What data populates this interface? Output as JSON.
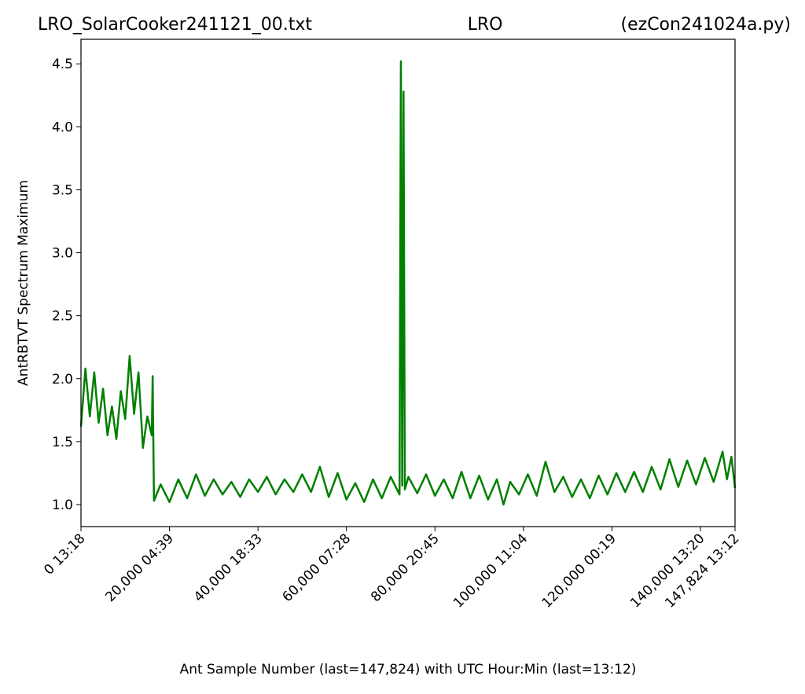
{
  "chart_data": {
    "type": "line",
    "titles": [
      "LRO_SolarCooker241121_00.txt",
      "LRO",
      "(ezCon241024a.py)"
    ],
    "x_label": "Ant Sample Number (last=147,824) with UTC Hour:Min (last=13:12)",
    "y_label": "AntRBTVT Spectrum Maximum",
    "xlim": [
      0,
      147824
    ],
    "ylim": [
      0.825,
      4.695
    ],
    "xticks": [
      {
        "value": 0,
        "label": "0  13:18"
      },
      {
        "value": 20000,
        "label": "20,000  04:39"
      },
      {
        "value": 40000,
        "label": "40,000  18:33"
      },
      {
        "value": 60000,
        "label": "60,000  07:28"
      },
      {
        "value": 80000,
        "label": "80,000  20:45"
      },
      {
        "value": 100000,
        "label": "100,000  11:04"
      },
      {
        "value": 120000,
        "label": "120,000  00:19"
      },
      {
        "value": 140000,
        "label": "140,000  13:20"
      },
      {
        "value": 147824,
        "label": "147,824  13:12"
      }
    ],
    "yticks": [
      {
        "value": 1,
        "label": "1.0"
      },
      1.5,
      {
        "value": 2,
        "label": "2.0"
      },
      2.5,
      {
        "value": 3,
        "label": "3.0"
      },
      3.5,
      {
        "value": 4,
        "label": "4.0"
      },
      4.5
    ],
    "x": [
      0,
      1000,
      2000,
      3000,
      4000,
      5000,
      6000,
      7000,
      8000,
      9000,
      10000,
      11000,
      12000,
      13000,
      14000,
      15000,
      16000,
      16200,
      16500,
      18000,
      20000,
      22000,
      24000,
      26000,
      28000,
      30000,
      32000,
      34000,
      36000,
      38000,
      40000,
      42000,
      44000,
      46000,
      48000,
      50000,
      52000,
      54000,
      56000,
      58000,
      60000,
      62000,
      64000,
      66000,
      68000,
      70000,
      72000,
      72300,
      72600,
      72900,
      73200,
      74000,
      76000,
      78000,
      80000,
      82000,
      84000,
      86000,
      88000,
      90000,
      92000,
      94000,
      95500,
      97000,
      99000,
      101000,
      103000,
      105000,
      107000,
      109000,
      111000,
      113000,
      115000,
      117000,
      119000,
      121000,
      123000,
      125000,
      127000,
      129000,
      131000,
      133000,
      135000,
      137000,
      139000,
      141000,
      143000,
      145000,
      146000,
      147000,
      147824
    ],
    "series": [
      {
        "color": "#008000",
        "values": [
          1.62,
          2.08,
          1.7,
          2.05,
          1.65,
          1.92,
          1.55,
          1.78,
          1.52,
          1.9,
          1.68,
          2.18,
          1.72,
          2.05,
          1.45,
          1.7,
          1.55,
          2.02,
          1.03,
          1.16,
          1.02,
          1.2,
          1.05,
          1.24,
          1.07,
          1.2,
          1.08,
          1.18,
          1.06,
          1.2,
          1.1,
          1.22,
          1.08,
          1.2,
          1.1,
          1.24,
          1.1,
          1.3,
          1.06,
          1.25,
          1.04,
          1.17,
          1.02,
          1.2,
          1.05,
          1.22,
          1.08,
          4.52,
          1.15,
          4.28,
          1.12,
          1.22,
          1.09,
          1.24,
          1.07,
          1.2,
          1.05,
          1.26,
          1.05,
          1.23,
          1.04,
          1.2,
          1.0,
          1.18,
          1.08,
          1.24,
          1.07,
          1.34,
          1.1,
          1.22,
          1.06,
          1.2,
          1.05,
          1.23,
          1.08,
          1.25,
          1.1,
          1.26,
          1.1,
          1.3,
          1.12,
          1.36,
          1.14,
          1.35,
          1.16,
          1.37,
          1.18,
          1.42,
          1.2,
          1.38,
          1.13
        ]
      }
    ]
  }
}
